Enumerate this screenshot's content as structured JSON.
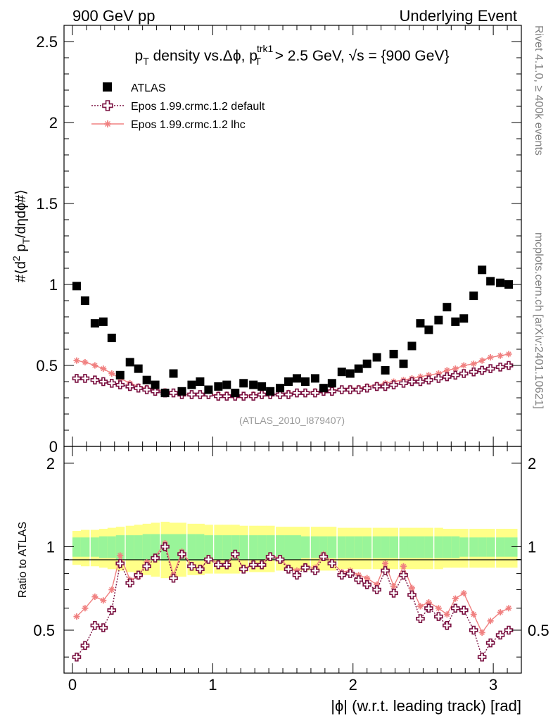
{
  "header": {
    "left": "900 GeV pp",
    "right": "Underlying Event"
  },
  "side_labels": {
    "rivet": "Rivet 4.1.0, ≥ 400k events",
    "mcplots": "mcplots.cern.ch [arXiv:2401.10621]"
  },
  "watermark": "(ATLAS_2010_I879407)",
  "colors": {
    "atlas": "#000000",
    "default": "#7a1040",
    "lhc": "#f08080",
    "band_outer": "#ffff88",
    "band_inner": "#99f599"
  },
  "chart_data": [
    {
      "type": "scatter",
      "title_parts": {
        "pre": "p",
        "pre_sub": "T",
        "mid": " density vs.Δϕ, p",
        "mid_sup": "trk1",
        "mid_sub": "T",
        "post": " > 2.5 GeV, √s = {900 GeV}"
      },
      "ylabel": "#⟨d² p_T/dηdϕ#⟩",
      "xlim": [
        -0.06,
        3.2
      ],
      "ylim": [
        0,
        2.6
      ],
      "yticks": [
        0.5,
        1,
        1.5,
        2,
        2.5
      ],
      "ytick_labels": [
        "0.5",
        "1",
        "1.5",
        "2",
        "2.5"
      ],
      "y_zero_label": "0",
      "x": [
        0.03,
        0.09,
        0.16,
        0.22,
        0.28,
        0.34,
        0.41,
        0.47,
        0.53,
        0.59,
        0.66,
        0.72,
        0.78,
        0.85,
        0.91,
        0.97,
        1.04,
        1.1,
        1.16,
        1.22,
        1.29,
        1.35,
        1.41,
        1.48,
        1.54,
        1.6,
        1.66,
        1.73,
        1.79,
        1.85,
        1.92,
        1.98,
        2.04,
        2.1,
        2.17,
        2.23,
        2.29,
        2.36,
        2.42,
        2.48,
        2.54,
        2.61,
        2.67,
        2.73,
        2.79,
        2.86,
        2.92,
        2.98,
        3.05,
        3.11
      ],
      "legend": [
        "ATLAS",
        "Epos 1.99.crmc.1.2 default",
        "Epos 1.99.crmc.1.2 lhc"
      ],
      "series": [
        {
          "name": "ATLAS",
          "values": [
            0.99,
            0.9,
            0.76,
            0.77,
            0.67,
            0.44,
            0.52,
            0.48,
            0.41,
            0.38,
            0.33,
            0.45,
            0.34,
            0.38,
            0.4,
            0.35,
            0.37,
            0.38,
            0.33,
            0.39,
            0.38,
            0.37,
            0.34,
            0.36,
            0.4,
            0.42,
            0.4,
            0.42,
            0.36,
            0.39,
            0.46,
            0.45,
            0.48,
            0.51,
            0.55,
            0.47,
            0.57,
            0.51,
            0.62,
            0.76,
            0.72,
            0.78,
            0.86,
            0.77,
            0.79,
            0.93,
            1.09,
            1.02,
            1.01,
            1.0
          ]
        },
        {
          "name": "Epos 1.99.crmc.1.2 default",
          "values": [
            0.42,
            0.42,
            0.41,
            0.4,
            0.39,
            0.38,
            0.37,
            0.36,
            0.35,
            0.34,
            0.33,
            0.33,
            0.32,
            0.32,
            0.32,
            0.32,
            0.31,
            0.31,
            0.31,
            0.31,
            0.31,
            0.32,
            0.32,
            0.32,
            0.32,
            0.33,
            0.33,
            0.33,
            0.34,
            0.34,
            0.35,
            0.35,
            0.35,
            0.36,
            0.37,
            0.37,
            0.38,
            0.39,
            0.4,
            0.4,
            0.41,
            0.42,
            0.43,
            0.44,
            0.45,
            0.46,
            0.47,
            0.48,
            0.49,
            0.5
          ]
        },
        {
          "name": "Epos 1.99.crmc.1.2 lhc",
          "values": [
            0.53,
            0.52,
            0.5,
            0.48,
            0.45,
            0.42,
            0.39,
            0.37,
            0.36,
            0.35,
            0.34,
            0.33,
            0.32,
            0.32,
            0.32,
            0.32,
            0.32,
            0.32,
            0.31,
            0.31,
            0.32,
            0.32,
            0.32,
            0.32,
            0.33,
            0.33,
            0.33,
            0.34,
            0.34,
            0.35,
            0.35,
            0.36,
            0.36,
            0.37,
            0.38,
            0.39,
            0.4,
            0.41,
            0.42,
            0.43,
            0.44,
            0.45,
            0.47,
            0.48,
            0.5,
            0.51,
            0.53,
            0.55,
            0.56,
            0.57
          ]
        }
      ]
    },
    {
      "type": "line",
      "ylabel": "Ratio to ATLAS",
      "xlabel": "|ϕ| (w.r.t. leading track) [rad]",
      "xlim": [
        -0.06,
        3.2
      ],
      "ylim": [
        0.35,
        2.3
      ],
      "xticks": [
        0,
        1,
        2,
        3
      ],
      "xtick_labels": [
        "0",
        "1",
        "2",
        "3"
      ],
      "yticks": [
        0.5,
        1,
        2
      ],
      "ytick_labels": [
        "0.5",
        "1",
        "2"
      ],
      "band_outer_half": [
        0.14,
        0.15,
        0.15,
        0.16,
        0.17,
        0.18,
        0.19,
        0.2,
        0.21,
        0.22,
        0.23,
        0.22,
        0.22,
        0.21,
        0.21,
        0.2,
        0.2,
        0.2,
        0.2,
        0.19,
        0.19,
        0.19,
        0.19,
        0.18,
        0.18,
        0.18,
        0.18,
        0.18,
        0.18,
        0.18,
        0.17,
        0.17,
        0.17,
        0.17,
        0.17,
        0.17,
        0.17,
        0.17,
        0.17,
        0.17,
        0.17,
        0.17,
        0.16,
        0.16,
        0.16,
        0.16,
        0.16,
        0.16,
        0.16,
        0.16
      ],
      "band_inner_half": [
        0.08,
        0.08,
        0.08,
        0.09,
        0.09,
        0.1,
        0.1,
        0.1,
        0.11,
        0.11,
        0.11,
        0.11,
        0.11,
        0.11,
        0.11,
        0.1,
        0.1,
        0.1,
        0.1,
        0.1,
        0.1,
        0.1,
        0.1,
        0.1,
        0.1,
        0.1,
        0.09,
        0.09,
        0.09,
        0.09,
        0.09,
        0.09,
        0.09,
        0.09,
        0.09,
        0.09,
        0.09,
        0.09,
        0.09,
        0.09,
        0.09,
        0.09,
        0.09,
        0.09,
        0.08,
        0.08,
        0.08,
        0.08,
        0.08,
        0.08
      ],
      "series": [
        {
          "name": "Epos 1.99.crmc.1.2 default",
          "values": [
            0.4,
            0.44,
            0.52,
            0.51,
            0.59,
            0.87,
            0.74,
            0.79,
            0.85,
            0.91,
            1.0,
            0.77,
            0.94,
            0.85,
            0.83,
            0.9,
            0.86,
            0.86,
            0.94,
            0.83,
            0.86,
            0.86,
            0.92,
            0.9,
            0.83,
            0.79,
            0.84,
            0.82,
            0.92,
            0.87,
            0.79,
            0.8,
            0.76,
            0.73,
            0.7,
            0.82,
            0.68,
            0.79,
            0.67,
            0.55,
            0.6,
            0.56,
            0.52,
            0.6,
            0.59,
            0.5,
            0.4,
            0.45,
            0.48,
            0.5
          ]
        },
        {
          "name": "Epos 1.99.crmc.1.2 lhc",
          "values": [
            0.56,
            0.6,
            0.66,
            0.64,
            0.7,
            0.93,
            0.76,
            0.78,
            0.88,
            0.92,
            1.03,
            0.79,
            0.96,
            0.86,
            0.82,
            0.91,
            0.87,
            0.87,
            0.95,
            0.83,
            0.87,
            0.87,
            0.93,
            0.91,
            0.84,
            0.82,
            0.85,
            0.84,
            0.94,
            0.88,
            0.81,
            0.82,
            0.79,
            0.77,
            0.73,
            0.87,
            0.72,
            0.85,
            0.71,
            0.61,
            0.63,
            0.6,
            0.57,
            0.65,
            0.68,
            0.57,
            0.49,
            0.54,
            0.58,
            0.6
          ]
        }
      ]
    }
  ]
}
